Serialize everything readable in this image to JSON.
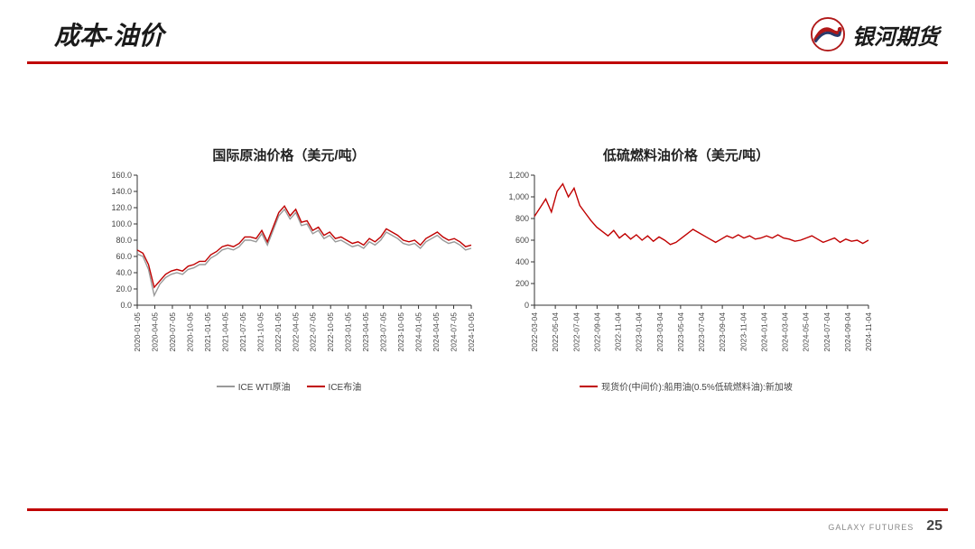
{
  "header": {
    "title": "成本-油价",
    "logo_text": "银河期货"
  },
  "footer": {
    "brand": "GALAXY FUTURES",
    "page": "25"
  },
  "colors": {
    "accent": "#c00000",
    "series_red": "#c00000",
    "series_gray": "#999999",
    "axis": "#333333",
    "tick": "#444444"
  },
  "chart_left": {
    "type": "line",
    "title": "国际原油价格（美元/吨）",
    "ylim": [
      0,
      160
    ],
    "ytick_step": 20,
    "yticks": [
      "0.0",
      "20.0",
      "40.0",
      "60.0",
      "80.0",
      "100.0",
      "120.0",
      "140.0",
      "160.0"
    ],
    "xlabels": [
      "2020-01-05",
      "2020-04-05",
      "2020-07-05",
      "2020-10-05",
      "2021-01-05",
      "2021-04-05",
      "2021-07-05",
      "2021-10-05",
      "2022-01-05",
      "2022-04-05",
      "2022-07-05",
      "2022-10-05",
      "2023-01-05",
      "2023-04-05",
      "2023-07-05",
      "2023-10-05",
      "2024-01-05",
      "2024-04-05",
      "2024-07-05",
      "2024-10-05"
    ],
    "legend": [
      {
        "label": "ICE WTI原油",
        "color": "#999999"
      },
      {
        "label": "ICE布油",
        "color": "#c00000"
      }
    ],
    "series_brent": [
      68,
      64,
      50,
      22,
      30,
      38,
      42,
      44,
      42,
      48,
      50,
      54,
      54,
      62,
      66,
      72,
      74,
      72,
      76,
      84,
      84,
      82,
      92,
      78,
      96,
      114,
      122,
      110,
      118,
      102,
      104,
      92,
      96,
      86,
      90,
      82,
      84,
      80,
      76,
      78,
      74,
      82,
      78,
      84,
      94,
      90,
      86,
      80,
      78,
      80,
      74,
      82,
      86,
      90,
      84,
      80,
      82,
      78,
      72,
      74
    ],
    "series_wti": [
      63,
      60,
      44,
      12,
      26,
      34,
      38,
      40,
      38,
      44,
      46,
      50,
      50,
      58,
      62,
      68,
      70,
      68,
      72,
      80,
      80,
      78,
      88,
      74,
      92,
      110,
      118,
      106,
      114,
      98,
      100,
      88,
      92,
      82,
      86,
      78,
      80,
      76,
      72,
      74,
      70,
      78,
      74,
      80,
      90,
      86,
      82,
      76,
      74,
      76,
      70,
      78,
      82,
      86,
      80,
      76,
      78,
      74,
      68,
      70
    ]
  },
  "chart_right": {
    "type": "line",
    "title": "低硫燃料油价格（美元/吨）",
    "ylim": [
      0,
      1200
    ],
    "ytick_step": 200,
    "yticks": [
      "0",
      "200",
      "400",
      "600",
      "800",
      "1,000",
      "1,200"
    ],
    "xlabels": [
      "2022-03-04",
      "2022-05-04",
      "2022-07-04",
      "2022-09-04",
      "2022-11-04",
      "2023-01-04",
      "2023-03-04",
      "2023-05-04",
      "2023-07-04",
      "2023-09-04",
      "2023-11-04",
      "2024-01-04",
      "2024-03-04",
      "2024-05-04",
      "2024-07-04",
      "2024-09-04",
      "2024-11-04"
    ],
    "legend": [
      {
        "label": "现货价(中间价):船用油(0.5%低硫燃料油):新加坡",
        "color": "#c00000"
      }
    ],
    "series": [
      820,
      900,
      980,
      860,
      1050,
      1120,
      1000,
      1080,
      920,
      850,
      780,
      720,
      680,
      640,
      690,
      620,
      660,
      610,
      650,
      600,
      640,
      590,
      630,
      600,
      560,
      580,
      620,
      660,
      700,
      670,
      640,
      610,
      580,
      610,
      640,
      620,
      650,
      620,
      640,
      610,
      620,
      640,
      620,
      650,
      620,
      610,
      590,
      600,
      620,
      640,
      610,
      580,
      600,
      620,
      580,
      610,
      590,
      600,
      570,
      600
    ]
  }
}
